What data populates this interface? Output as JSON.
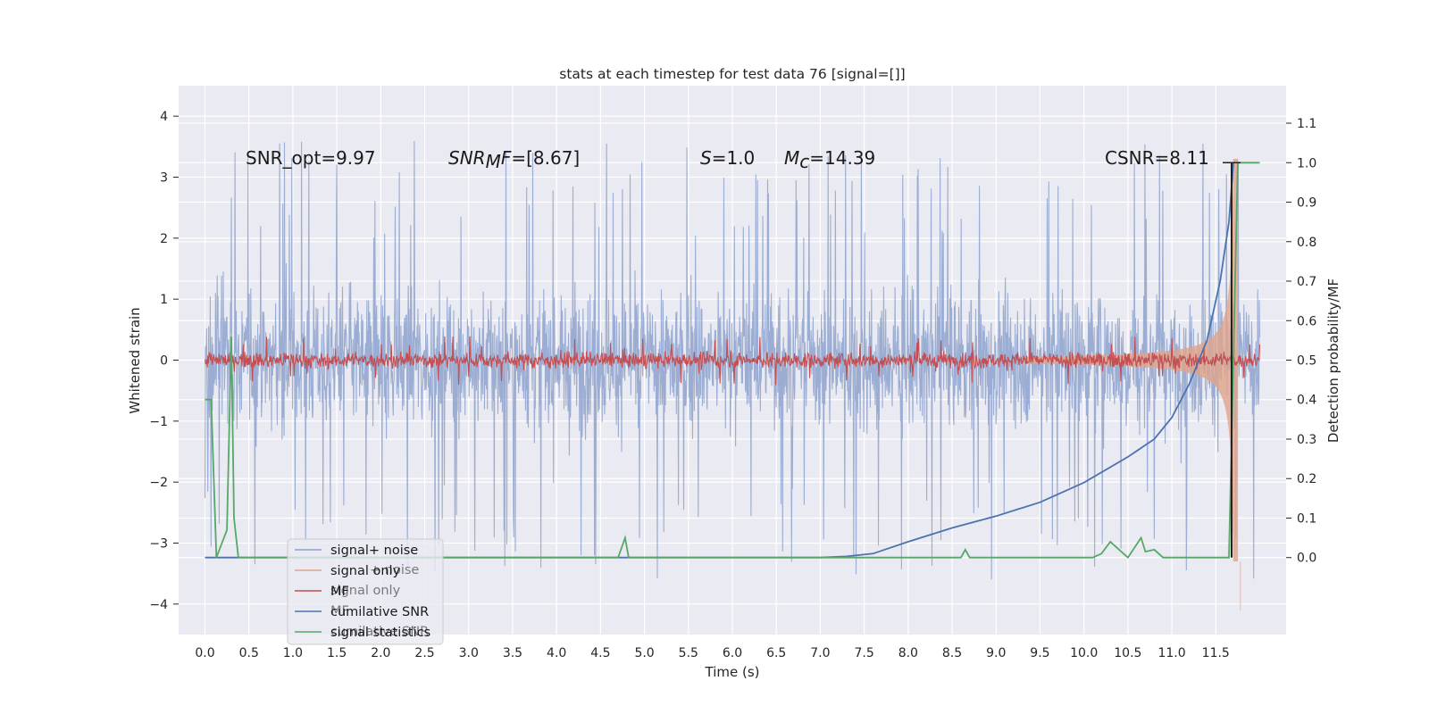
{
  "chart_data": {
    "type": "line",
    "title": "stats at each timestep for test data 76 [signal=[]]",
    "xlabel": "Time (s)",
    "ylabel_left": "Whitened strain",
    "ylabel_right": "Detection probability/MF",
    "xlim": [
      -0.3,
      12.3
    ],
    "ylim_left": [
      -4.5,
      4.5
    ],
    "ylim_right": [
      -0.195,
      1.195
    ],
    "x_ticks": [
      "0.0",
      "0.5",
      "1.0",
      "1.5",
      "2.0",
      "2.5",
      "3.0",
      "3.5",
      "4.0",
      "4.5",
      "5.0",
      "5.5",
      "6.0",
      "6.5",
      "7.0",
      "7.5",
      "8.0",
      "8.5",
      "9.0",
      "9.5",
      "10.0",
      "10.5",
      "11.0",
      "11.5"
    ],
    "y_ticks_left": [
      "4",
      "3",
      "2",
      "1",
      "0",
      "−1",
      "−2",
      "−3",
      "−4"
    ],
    "y_ticks_right": [
      "1.1",
      "1.0",
      "0.9",
      "0.8",
      "0.7",
      "0.6",
      "0.5",
      "0.4",
      "0.3",
      "0.2",
      "0.1",
      "0.0"
    ],
    "grid": true,
    "annotations": {
      "snr_opt": "SNR_opt=9.97",
      "snr_mf_main": "SNR",
      "snr_mf_sub": "M",
      "snr_mf_tail": "F",
      "snr_mf_value": "=[8.67]",
      "s_sym": "S",
      "s_value": "=1.0",
      "mc_sym": "M",
      "mc_sub": "c",
      "mc_value": "=14.39",
      "csnr": "CSNR=8.11"
    },
    "series": [
      {
        "name": "signal+ noise",
        "color": "#8da2cc",
        "description": "noisy strain, amplitude about ±1.5 with spikes to ±4",
        "x_range": [
          0.0,
          12.0
        ]
      },
      {
        "name": "signal only",
        "color": "#e0a48a",
        "description": "chirp envelope growing from 0 near t=9.5 to about ±3.3 at t=11.7",
        "x_range": [
          0.0,
          11.8
        ]
      },
      {
        "name": "MF",
        "color": "#c44e52",
        "description": "matched filter output about ±0.15 around 0",
        "x_range": [
          0.0,
          12.0
        ]
      },
      {
        "name": "cumilative SNR",
        "color": "#4c72b0",
        "points": [
          [
            0.0,
            0.0
          ],
          [
            7.0,
            0.0
          ],
          [
            7.3,
            0.003
          ],
          [
            7.6,
            0.01
          ],
          [
            8.0,
            0.04
          ],
          [
            8.5,
            0.075
          ],
          [
            9.0,
            0.105
          ],
          [
            9.5,
            0.14
          ],
          [
            10.0,
            0.19
          ],
          [
            10.5,
            0.255
          ],
          [
            10.8,
            0.3
          ],
          [
            11.0,
            0.355
          ],
          [
            11.2,
            0.44
          ],
          [
            11.4,
            0.55
          ],
          [
            11.55,
            0.7
          ],
          [
            11.65,
            0.85
          ],
          [
            11.7,
            1.0
          ]
        ]
      },
      {
        "name": "signal statistics",
        "color": "#55a868",
        "points": [
          [
            0.0,
            0.4
          ],
          [
            0.07,
            0.4
          ],
          [
            0.13,
            0.0
          ],
          [
            0.25,
            0.07
          ],
          [
            0.3,
            0.56
          ],
          [
            0.33,
            0.1
          ],
          [
            0.38,
            0.0
          ],
          [
            4.7,
            0.0
          ],
          [
            4.78,
            0.05
          ],
          [
            4.82,
            0.0
          ],
          [
            8.6,
            0.0
          ],
          [
            8.65,
            0.02
          ],
          [
            8.7,
            0.0
          ],
          [
            10.1,
            0.0
          ],
          [
            10.2,
            0.01
          ],
          [
            10.3,
            0.04
          ],
          [
            10.4,
            0.02
          ],
          [
            10.5,
            0.0
          ],
          [
            10.65,
            0.05
          ],
          [
            10.7,
            0.015
          ],
          [
            10.8,
            0.02
          ],
          [
            10.9,
            0.0
          ],
          [
            11.55,
            0.0
          ],
          [
            11.65,
            0.0
          ],
          [
            11.75,
            1.0
          ],
          [
            12.0,
            1.0
          ]
        ]
      }
    ],
    "vertical_line": {
      "x": 11.68,
      "color": "#222222"
    },
    "legend": {
      "placement": "lower-left",
      "entries": [
        {
          "label": "signal+ noise",
          "color": "#8da2cc"
        },
        {
          "label": "signal only",
          "color": "#e0a48a"
        },
        {
          "label": "MF",
          "color": "#c44e52"
        },
        {
          "label": "cumilative SNR",
          "color": "#4c72b0"
        },
        {
          "label": "signal statistics",
          "color": "#55a868"
        }
      ],
      "ghost_labels": [
        "+ noise",
        "signal only",
        "MF",
        "cumilative SNR",
        "signal statistics"
      ]
    }
  }
}
